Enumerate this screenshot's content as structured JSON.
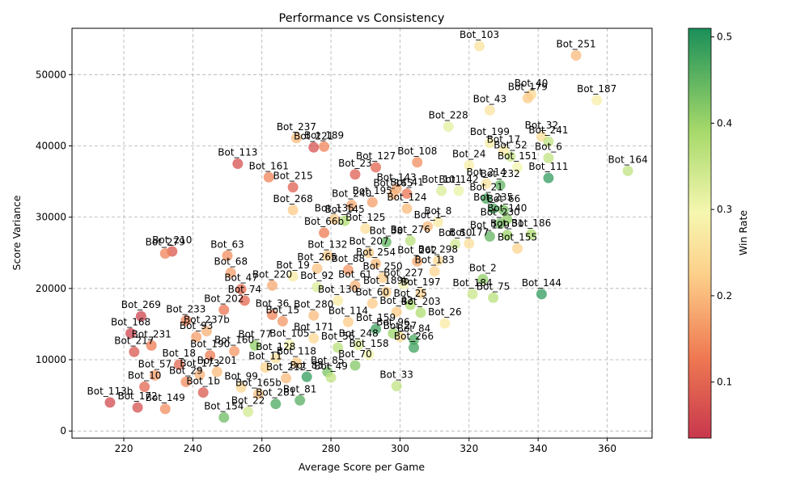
{
  "chart_data": {
    "type": "scatter",
    "title": "Performance vs Consistency",
    "xlabel": "Average Score per Game",
    "ylabel": "Score Variance",
    "xlim": [
      205,
      373
    ],
    "ylim": [
      -1000,
      56500
    ],
    "xticks": [
      "220",
      "240",
      "260",
      "280",
      "300",
      "320",
      "340",
      "360"
    ],
    "xtick_values": [
      220,
      240,
      260,
      280,
      300,
      320,
      340,
      360
    ],
    "yticks": [
      "0",
      "10000",
      "20000",
      "30000",
      "40000",
      "50000"
    ],
    "ytick_values": [
      0,
      10000,
      20000,
      30000,
      40000,
      50000
    ],
    "grid": true,
    "colorbar": {
      "label": "Win Rate",
      "range": [
        0.035,
        0.51
      ],
      "ticks": [
        "0.1",
        "0.2",
        "0.3",
        "0.4",
        "0.5"
      ],
      "tick_values": [
        0.1,
        0.2,
        0.3,
        0.4,
        0.5
      ],
      "colormap": "RdYlGn"
    },
    "points": [
      {
        "label": "Bot_103",
        "x": 323,
        "y": 54000,
        "c": 0.26
      },
      {
        "label": "Bot_251",
        "x": 351,
        "y": 52700,
        "c": 0.2
      },
      {
        "label": "Bot_40",
        "x": 338,
        "y": 47200,
        "c": 0.24
      },
      {
        "label": "Bot_179",
        "x": 337,
        "y": 46700,
        "c": 0.22
      },
      {
        "label": "Bot_187",
        "x": 357,
        "y": 46400,
        "c": 0.28
      },
      {
        "label": "Bot_43",
        "x": 326,
        "y": 45000,
        "c": 0.26
      },
      {
        "label": "Bot_228",
        "x": 314,
        "y": 42700,
        "c": 0.32
      },
      {
        "label": "Bot_199",
        "x": 326,
        "y": 40400,
        "c": 0.28
      },
      {
        "label": "Bot_32",
        "x": 341,
        "y": 41300,
        "c": 0.25
      },
      {
        "label": "Bot_241",
        "x": 343,
        "y": 40600,
        "c": 0.36
      },
      {
        "label": "Bot_237",
        "x": 270,
        "y": 41100,
        "c": 0.2
      },
      {
        "label": "Bot_221",
        "x": 275,
        "y": 39800,
        "c": 0.07
      },
      {
        "label": "Bot_189",
        "x": 278,
        "y": 39900,
        "c": 0.14
      },
      {
        "label": "Bot_17",
        "x": 330,
        "y": 39300,
        "c": 0.27
      },
      {
        "label": "Bot_52",
        "x": 332,
        "y": 38500,
        "c": 0.35
      },
      {
        "label": "Bot_6",
        "x": 343,
        "y": 38300,
        "c": 0.36
      },
      {
        "label": "Bot_24",
        "x": 320,
        "y": 37300,
        "c": 0.28
      },
      {
        "label": "Bot_151",
        "x": 334,
        "y": 37000,
        "c": 0.3
      },
      {
        "label": "Bot_113",
        "x": 253,
        "y": 37500,
        "c": 0.07
      },
      {
        "label": "Bot_108",
        "x": 305,
        "y": 37700,
        "c": 0.15
      },
      {
        "label": "Bot_127",
        "x": 293,
        "y": 37000,
        "c": 0.1
      },
      {
        "label": "Bot_164",
        "x": 366,
        "y": 36500,
        "c": 0.36
      },
      {
        "label": "Bot_161",
        "x": 262,
        "y": 35600,
        "c": 0.14
      },
      {
        "label": "Bot_23",
        "x": 287,
        "y": 36000,
        "c": 0.09
      },
      {
        "label": "Bot_214",
        "x": 325,
        "y": 34700,
        "c": 0.26
      },
      {
        "label": "Bot_111",
        "x": 343,
        "y": 35500,
        "c": 0.49
      },
      {
        "label": "Bot_215",
        "x": 269,
        "y": 34200,
        "c": 0.09
      },
      {
        "label": "Bot_143",
        "x": 299,
        "y": 34000,
        "c": 0.18
      },
      {
        "label": "Bot_101",
        "x": 312,
        "y": 33700,
        "c": 0.33
      },
      {
        "label": "Bot_142",
        "x": 317,
        "y": 33700,
        "c": 0.31
      },
      {
        "label": "Bot_232",
        "x": 329,
        "y": 34500,
        "c": 0.45
      },
      {
        "label": "Bot_165",
        "x": 298,
        "y": 33200,
        "c": 0.19
      },
      {
        "label": "Bot_41",
        "x": 302,
        "y": 33300,
        "c": 0.12
      },
      {
        "label": "Bot_21",
        "x": 325,
        "y": 32600,
        "c": 0.47
      },
      {
        "label": "Bot_268",
        "x": 269,
        "y": 31000,
        "c": 0.22
      },
      {
        "label": "Bot_240",
        "x": 286,
        "y": 31700,
        "c": 0.18
      },
      {
        "label": "Bot_124",
        "x": 302,
        "y": 31200,
        "c": 0.2
      },
      {
        "label": "Bot_66",
        "x": 330,
        "y": 31000,
        "c": 0.43
      },
      {
        "label": "Bot_135",
        "x": 281,
        "y": 29700,
        "c": 0.22
      },
      {
        "label": "Bot_8",
        "x": 311,
        "y": 29300,
        "c": 0.27
      },
      {
        "label": "Bot_230",
        "x": 329,
        "y": 29100,
        "c": 0.43
      },
      {
        "label": "Bot_1",
        "x": 308,
        "y": 28700,
        "c": 0.2
      },
      {
        "label": "Bot_186",
        "x": 338,
        "y": 27600,
        "c": 0.38
      },
      {
        "label": "Bot_129",
        "x": 326,
        "y": 27300,
        "c": 0.45
      },
      {
        "label": "Bot_31",
        "x": 331,
        "y": 27500,
        "c": 0.4
      },
      {
        "label": "Bot_276",
        "x": 303,
        "y": 26700,
        "c": 0.37
      },
      {
        "label": "Bot_210",
        "x": 234,
        "y": 25200,
        "c": 0.08
      },
      {
        "label": "Bot_279",
        "x": 232,
        "y": 24900,
        "c": 0.14
      },
      {
        "label": "Bot_63",
        "x": 250,
        "y": 24600,
        "c": 0.15
      },
      {
        "label": "Bot_68",
        "x": 251,
        "y": 22200,
        "c": 0.17
      },
      {
        "label": "Bot_254",
        "x": 293,
        "y": 23500,
        "c": 0.2
      },
      {
        "label": "Bot_262",
        "x": 305,
        "y": 23800,
        "c": 0.18
      },
      {
        "label": "Bot_298",
        "x": 311,
        "y": 23900,
        "c": 0.24
      },
      {
        "label": "Bot_183",
        "x": 310,
        "y": 22400,
        "c": 0.23
      },
      {
        "label": "Bot_250",
        "x": 295,
        "y": 21500,
        "c": 0.22
      },
      {
        "label": "Bot_2",
        "x": 324,
        "y": 21300,
        "c": 0.41
      },
      {
        "label": "Bot_184",
        "x": 321,
        "y": 19200,
        "c": 0.35
      },
      {
        "label": "Bot_75",
        "x": 327,
        "y": 18700,
        "c": 0.37
      },
      {
        "label": "Bot_144",
        "x": 341,
        "y": 19200,
        "c": 0.49
      },
      {
        "label": "Bot_220",
        "x": 263,
        "y": 20400,
        "c": 0.18
      },
      {
        "label": "Bot_202",
        "x": 249,
        "y": 17000,
        "c": 0.12
      },
      {
        "label": "Bot_189b",
        "x": 296,
        "y": 19500,
        "c": 0.22
      },
      {
        "label": "Bot_25",
        "x": 303,
        "y": 17700,
        "c": 0.38
      },
      {
        "label": "Bot_269",
        "x": 225,
        "y": 16100,
        "c": 0.05
      },
      {
        "label": "Bot_233",
        "x": 238,
        "y": 15500,
        "c": 0.14
      },
      {
        "label": "Bot_26",
        "x": 313,
        "y": 15100,
        "c": 0.27
      },
      {
        "label": "Bot_280",
        "x": 275,
        "y": 16200,
        "c": 0.2
      },
      {
        "label": "Bot_42",
        "x": 299,
        "y": 16700,
        "c": 0.22
      },
      {
        "label": "Bot_203",
        "x": 306,
        "y": 16600,
        "c": 0.38
      },
      {
        "label": "Bot_168",
        "x": 222,
        "y": 13700,
        "c": 0.05
      },
      {
        "label": "Bot_231",
        "x": 228,
        "y": 12000,
        "c": 0.13
      },
      {
        "label": "Bot_217",
        "x": 223,
        "y": 11100,
        "c": 0.08
      },
      {
        "label": "Bot_93",
        "x": 241,
        "y": 13200,
        "c": 0.17
      },
      {
        "label": "Bot_237b",
        "x": 244,
        "y": 14000,
        "c": 0.19
      },
      {
        "label": "Bot_159",
        "x": 293,
        "y": 14300,
        "c": 0.48
      },
      {
        "label": "Bot_27",
        "x": 300,
        "y": 13200,
        "c": 0.24
      },
      {
        "label": "Bot_84",
        "x": 304,
        "y": 12800,
        "c": 0.47
      },
      {
        "label": "Bot_248",
        "x": 288,
        "y": 12100,
        "c": 0.33
      },
      {
        "label": "Bot_266",
        "x": 304,
        "y": 11700,
        "c": 0.48
      },
      {
        "label": "Bot_158",
        "x": 291,
        "y": 10700,
        "c": 0.3
      },
      {
        "label": "Bot_70",
        "x": 287,
        "y": 9200,
        "c": 0.42
      },
      {
        "label": "Bot_18",
        "x": 236,
        "y": 9300,
        "c": 0.1
      },
      {
        "label": "Bot_85",
        "x": 279,
        "y": 8300,
        "c": 0.43
      },
      {
        "label": "Bot_33",
        "x": 299,
        "y": 6300,
        "c": 0.36
      },
      {
        "label": "Bot_113b",
        "x": 216,
        "y": 4000,
        "c": 0.06
      },
      {
        "label": "Bot_149",
        "x": 232,
        "y": 3100,
        "c": 0.15
      },
      {
        "label": "Bot_1b",
        "x": 243,
        "y": 5400,
        "c": 0.08
      },
      {
        "label": "Bot_154",
        "x": 249,
        "y": 1900,
        "c": 0.44
      },
      {
        "label": "Bot_22",
        "x": 256,
        "y": 2700,
        "c": 0.34
      },
      {
        "label": "Bot_81",
        "x": 271,
        "y": 4300,
        "c": 0.46
      },
      {
        "label": "Bot_281",
        "x": 264,
        "y": 3800,
        "c": 0.47
      },
      {
        "label": "Bot_83",
        "x": 273,
        "y": 7600,
        "c": 0.49
      },
      {
        "label": "Bot_10",
        "x": 226,
        "y": 6200,
        "c": 0.1
      },
      {
        "label": "Bot_172",
        "x": 224,
        "y": 3300,
        "c": 0.07
      },
      {
        "label": "Bot_128",
        "x": 264,
        "y": 10200,
        "c": 0.25
      },
      {
        "label": "Bot_77",
        "x": 258,
        "y": 12000,
        "c": 0.41
      },
      {
        "label": "Bot_140",
        "x": 331,
        "y": 29700,
        "c": 0.41
      },
      {
        "label": "Bot_125",
        "x": 290,
        "y": 28400,
        "c": 0.25
      },
      {
        "label": "Bot_38",
        "x": 296,
        "y": 26500,
        "c": 0.45
      },
      {
        "label": "Bot_19",
        "x": 269,
        "y": 21700,
        "c": 0.27
      },
      {
        "label": "Bot_92",
        "x": 276,
        "y": 20200,
        "c": 0.33
      },
      {
        "label": "Bot_227",
        "x": 301,
        "y": 20600,
        "c": 0.3
      },
      {
        "label": "Bot_15",
        "x": 266,
        "y": 15400,
        "c": 0.16
      },
      {
        "label": "Bot_56",
        "x": 282,
        "y": 11700,
        "c": 0.37
      },
      {
        "label": "Bot_118",
        "x": 270,
        "y": 9600,
        "c": 0.22
      },
      {
        "label": "Bot_201",
        "x": 247,
        "y": 8300,
        "c": 0.2
      },
      {
        "label": "Bot_99",
        "x": 254,
        "y": 6100,
        "c": 0.24
      },
      {
        "label": "Bot_165b",
        "x": 259,
        "y": 5200,
        "c": 0.21
      },
      {
        "label": "Bot_49",
        "x": 280,
        "y": 7500,
        "c": 0.36
      },
      {
        "label": "Bot_114",
        "x": 285,
        "y": 15300,
        "c": 0.22
      },
      {
        "label": "Bot_207",
        "x": 291,
        "y": 25000,
        "c": 0.22
      },
      {
        "label": "Bot_66b",
        "x": 278,
        "y": 27800,
        "c": 0.13
      },
      {
        "label": "Bot_145",
        "x": 284,
        "y": 29500,
        "c": 0.38
      },
      {
        "label": "Bot_36",
        "x": 263,
        "y": 16300,
        "c": 0.14
      },
      {
        "label": "Bot_74",
        "x": 255,
        "y": 18300,
        "c": 0.1
      },
      {
        "label": "Bot_61",
        "x": 287,
        "y": 20400,
        "c": 0.19
      },
      {
        "label": "Bot_96",
        "x": 298,
        "y": 13700,
        "c": 0.4
      },
      {
        "label": "Bot_171",
        "x": 275,
        "y": 13000,
        "c": 0.24
      },
      {
        "label": "Bot_105",
        "x": 268,
        "y": 12100,
        "c": 0.3
      },
      {
        "label": "Bot_160",
        "x": 252,
        "y": 11200,
        "c": 0.16
      },
      {
        "label": "Bot_190",
        "x": 245,
        "y": 10600,
        "c": 0.13
      },
      {
        "label": "Bot_11",
        "x": 261,
        "y": 8900,
        "c": 0.23
      },
      {
        "label": "Bot_212",
        "x": 267,
        "y": 7400,
        "c": 0.2
      },
      {
        "label": "Bot_173",
        "x": 242,
        "y": 7900,
        "c": 0.19
      },
      {
        "label": "Bot_29",
        "x": 238,
        "y": 6900,
        "c": 0.15
      },
      {
        "label": "Bot_57",
        "x": 229,
        "y": 7800,
        "c": 0.17
      },
      {
        "label": "Bot_88",
        "x": 285,
        "y": 22600,
        "c": 0.16
      },
      {
        "label": "Bot_132",
        "x": 279,
        "y": 24600,
        "c": 0.22
      },
      {
        "label": "Bot_197",
        "x": 306,
        "y": 19300,
        "c": 0.23
      },
      {
        "label": "Bot_50",
        "x": 316,
        "y": 26200,
        "c": 0.34
      },
      {
        "label": "Bot_177",
        "x": 320,
        "y": 26300,
        "c": 0.25
      },
      {
        "label": "Bot_155",
        "x": 334,
        "y": 25600,
        "c": 0.23
      },
      {
        "label": "Bot_130",
        "x": 282,
        "y": 18300,
        "c": 0.27
      },
      {
        "label": "Bot_60",
        "x": 292,
        "y": 17900,
        "c": 0.22
      },
      {
        "label": "Bot_265",
        "x": 276,
        "y": 22800,
        "c": 0.21
      },
      {
        "label": "Bot_47",
        "x": 254,
        "y": 19900,
        "c": 0.11
      },
      {
        "label": "Bot_195",
        "x": 292,
        "y": 32100,
        "c": 0.17
      },
      {
        "label": "Bot_235",
        "x": 327,
        "y": 31200,
        "c": 0.47
      }
    ]
  }
}
